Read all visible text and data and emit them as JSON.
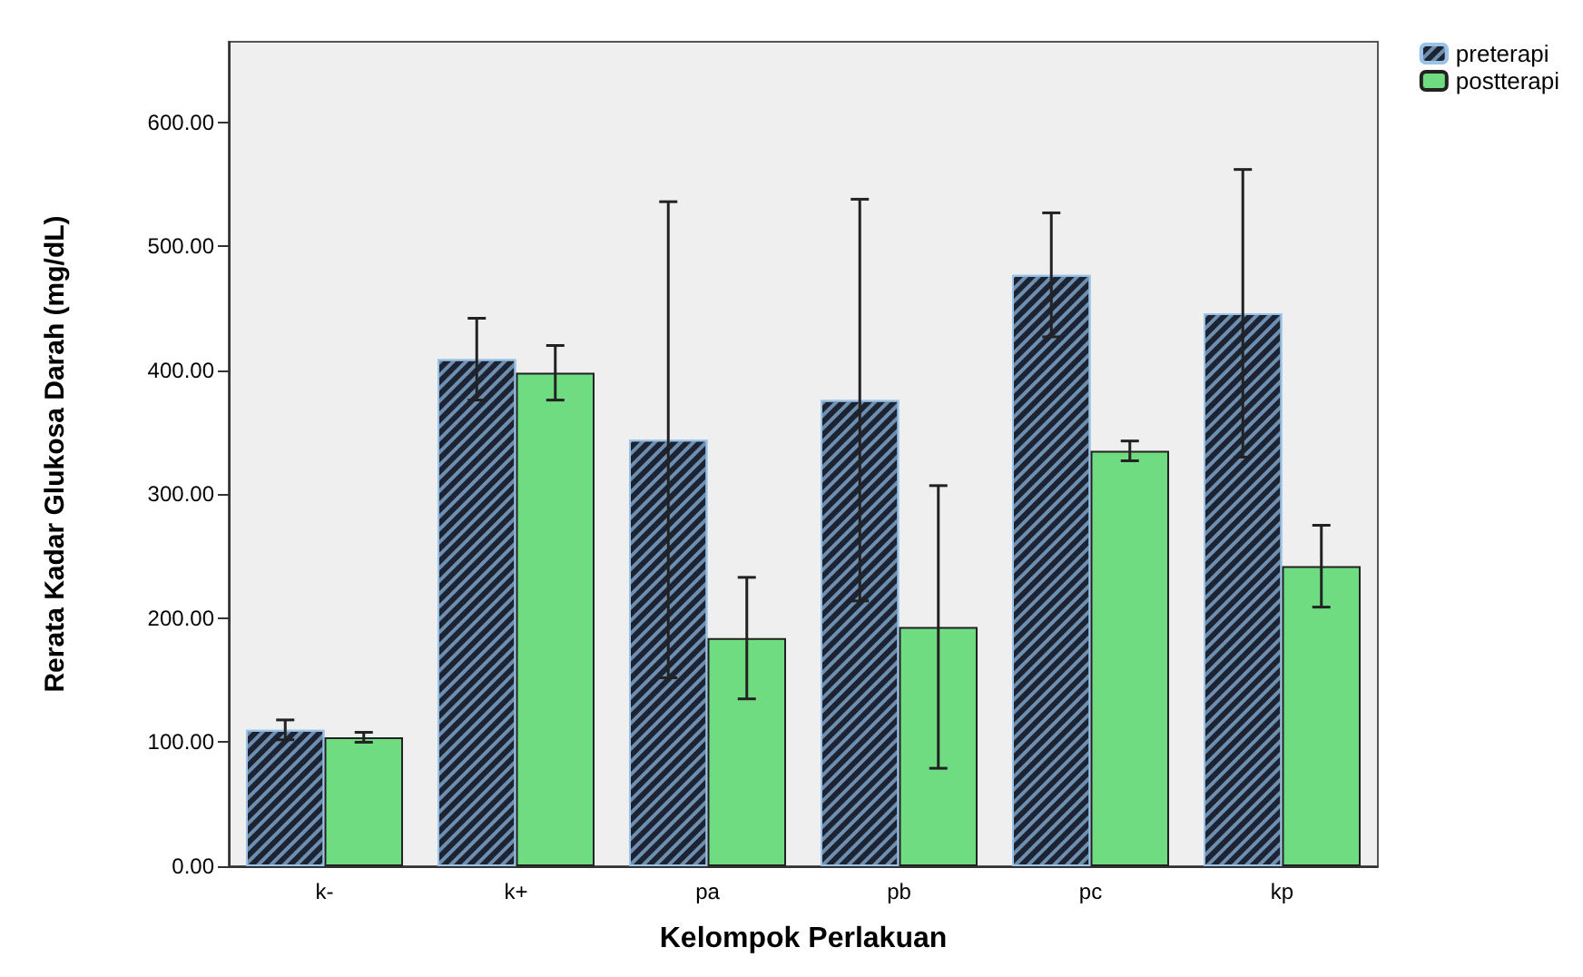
{
  "chart_data": {
    "type": "bar",
    "xlabel": "Kelompok Perlakuan",
    "ylabel": "Rerata Kadar Glukosa Darah (mg/dL)",
    "categories": [
      "k-",
      "k+",
      "pa",
      "pb",
      "pc",
      "kp"
    ],
    "series": [
      {
        "name": "preterapi",
        "color": "#1c2433",
        "values": [
          110,
          409,
          344,
          376,
          477,
          446
        ],
        "errors": [
          8,
          33,
          192,
          162,
          50,
          116
        ]
      },
      {
        "name": "postterapi",
        "color": "#6fdc82",
        "values": [
          104,
          398,
          184,
          193,
          335,
          242
        ],
        "errors": [
          4,
          22,
          49,
          114,
          8,
          33
        ]
      }
    ],
    "ylim": [
      0,
      665
    ],
    "yticks": [
      {
        "value": 0,
        "label": "0.00"
      },
      {
        "value": 100,
        "label": "100.00"
      },
      {
        "value": 200,
        "label": "200.00"
      },
      {
        "value": 300,
        "label": "300.00"
      },
      {
        "value": 400,
        "label": "400.00"
      },
      {
        "value": 500,
        "label": "500.00"
      },
      {
        "value": 600,
        "label": "600.00"
      }
    ],
    "grid": false,
    "legend": "top right"
  }
}
